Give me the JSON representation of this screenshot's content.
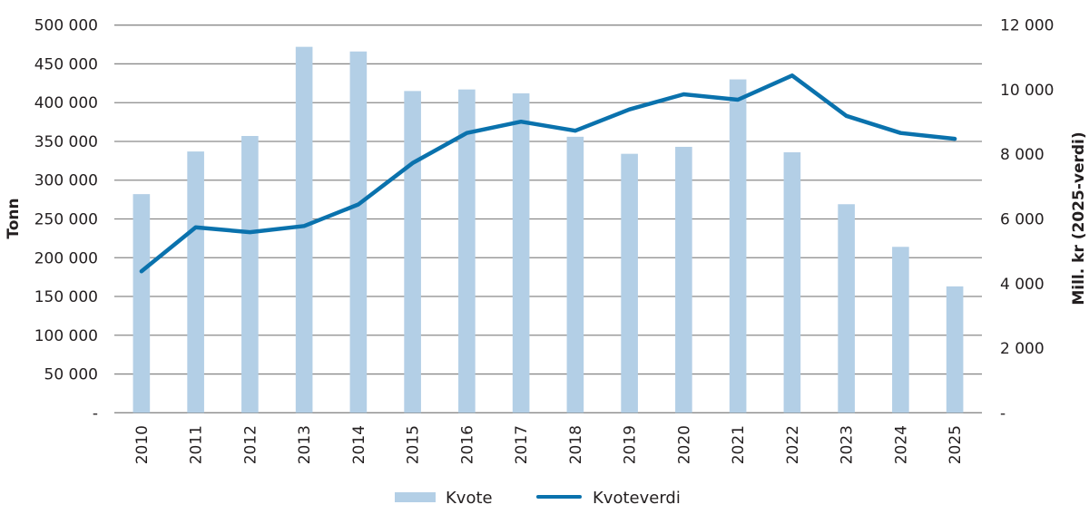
{
  "chart_data": {
    "type": "bar+line",
    "title": "",
    "categories": [
      "2010",
      "2011",
      "2012",
      "2013",
      "2014",
      "2015",
      "2016",
      "2017",
      "2018",
      "2019",
      "2020",
      "2021",
      "2022",
      "2023",
      "2024",
      "2025"
    ],
    "series": [
      {
        "name": "Kvote",
        "type": "bar",
        "axis": "left",
        "color": "#b3cfe6",
        "values": [
          282000,
          337000,
          357000,
          472000,
          466000,
          415000,
          417000,
          412000,
          356000,
          334000,
          343000,
          430000,
          336000,
          269000,
          214000,
          163000
        ]
      },
      {
        "name": "Kvoteverdi",
        "type": "line",
        "axis": "right",
        "color": "#0a72ad",
        "values": [
          4380,
          5740,
          5590,
          5780,
          6450,
          7730,
          8660,
          9010,
          8730,
          9390,
          9860,
          9690,
          10440,
          9190,
          8660,
          8480
        ]
      }
    ],
    "y_left": {
      "label": "Tonn",
      "range": [
        0,
        500000
      ],
      "ticks": [
        "-",
        "50 000",
        "100 000",
        "150 000",
        "200 000",
        "250 000",
        "300 000",
        "350 000",
        "400 000",
        "450 000",
        "500 000"
      ]
    },
    "y_right": {
      "label": "Mill. kr (2025-verdi)",
      "range": [
        0,
        12000
      ],
      "ticks": [
        "-",
        "2 000",
        "4 000",
        "6 000",
        "8 000",
        "10 000",
        "12 000"
      ]
    },
    "grid": true,
    "legend_position": "bottom"
  }
}
